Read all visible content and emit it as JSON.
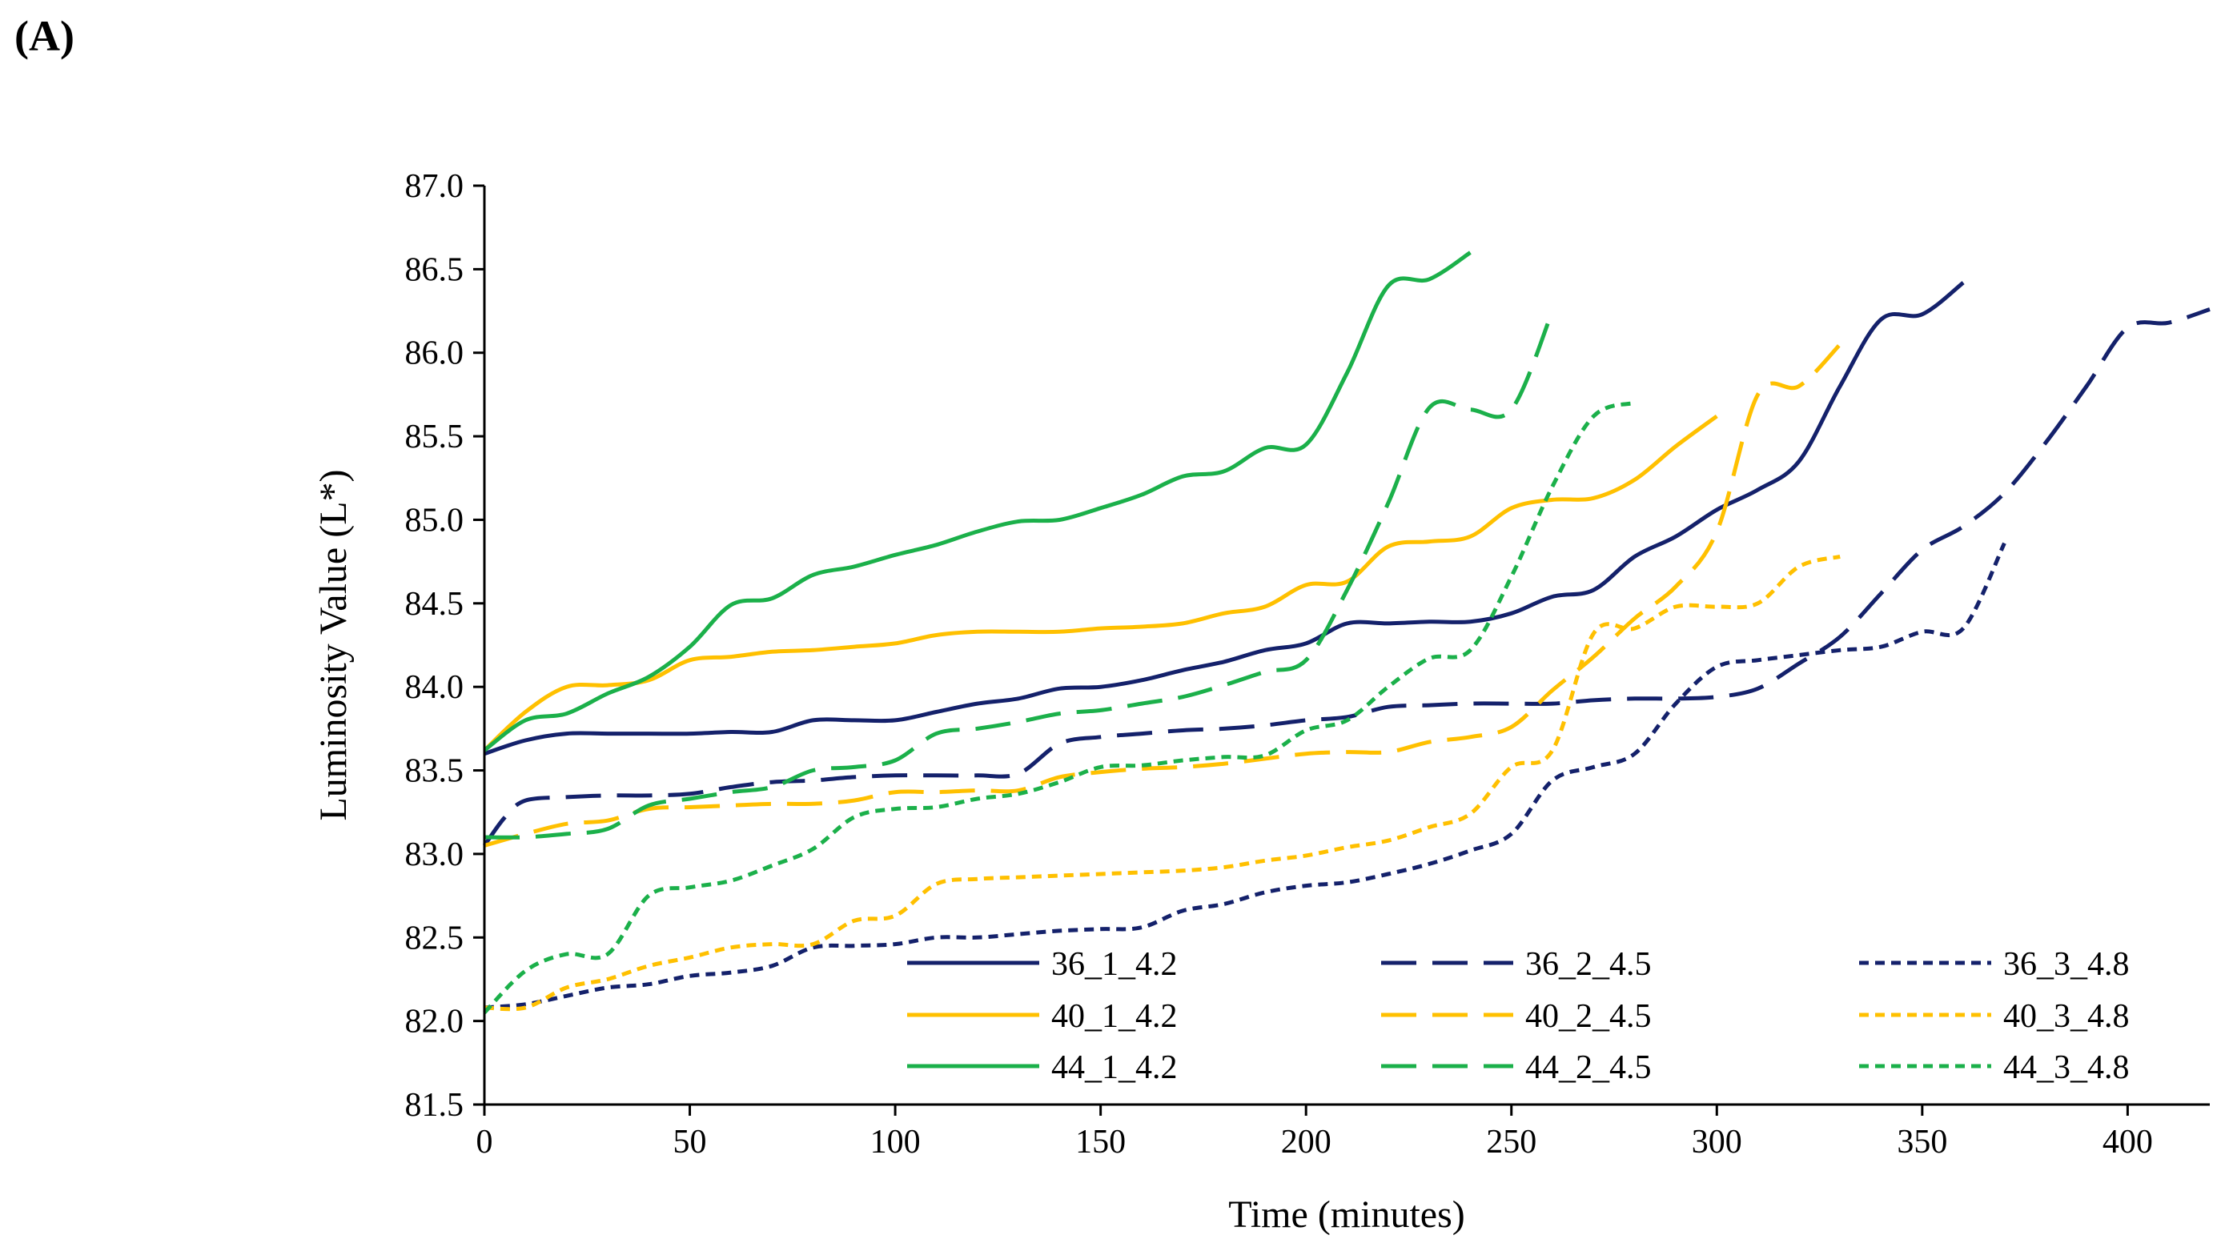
{
  "panel_label": "(A)",
  "chart_data": {
    "type": "line",
    "title": "",
    "xlabel": "Time (minutes)",
    "ylabel": "Luminosity Value (L*)",
    "xlim": [
      0,
      420
    ],
    "ylim": [
      81.5,
      87.0
    ],
    "xticks": [
      0,
      50,
      100,
      150,
      200,
      250,
      300,
      350,
      400
    ],
    "yticks": [
      81.5,
      82.0,
      82.5,
      83.0,
      83.5,
      84.0,
      84.5,
      85.0,
      85.5,
      86.0,
      86.5,
      87.0
    ],
    "grid": false,
    "legend_position": "inside-bottom",
    "series": [
      {
        "name": "36_1_4.2",
        "color": "#14216b",
        "dash": "solid",
        "x": [
          0,
          10,
          20,
          30,
          40,
          50,
          60,
          70,
          80,
          90,
          100,
          110,
          120,
          130,
          140,
          150,
          160,
          170,
          180,
          190,
          200,
          210,
          220,
          230,
          240,
          250,
          260,
          270,
          280,
          290,
          300,
          310,
          320,
          330,
          340,
          350,
          360
        ],
        "y": [
          83.6,
          83.68,
          83.72,
          83.72,
          83.72,
          83.72,
          83.73,
          83.73,
          83.8,
          83.8,
          83.8,
          83.85,
          83.9,
          83.93,
          83.99,
          84.0,
          84.04,
          84.1,
          84.15,
          84.22,
          84.26,
          84.38,
          84.38,
          84.39,
          84.39,
          84.44,
          84.54,
          84.58,
          84.78,
          84.9,
          85.06,
          85.18,
          85.35,
          85.8,
          86.2,
          86.23,
          86.42
        ]
      },
      {
        "name": "36_2_4.5",
        "color": "#14216b",
        "dash": "long",
        "x": [
          0,
          5,
          10,
          20,
          30,
          40,
          50,
          60,
          70,
          80,
          90,
          100,
          110,
          120,
          130,
          140,
          150,
          160,
          170,
          180,
          190,
          200,
          210,
          220,
          230,
          240,
          250,
          260,
          270,
          280,
          290,
          300,
          310,
          320,
          330,
          340,
          350,
          360,
          370,
          380,
          390,
          400,
          410,
          420
        ],
        "y": [
          83.05,
          83.22,
          83.32,
          83.34,
          83.35,
          83.35,
          83.36,
          83.4,
          83.43,
          83.44,
          83.46,
          83.47,
          83.47,
          83.47,
          83.48,
          83.66,
          83.7,
          83.72,
          83.74,
          83.75,
          83.77,
          83.8,
          83.82,
          83.88,
          83.89,
          83.9,
          83.9,
          83.9,
          83.92,
          83.93,
          83.93,
          83.94,
          83.99,
          84.14,
          84.3,
          84.56,
          84.82,
          84.96,
          85.16,
          85.46,
          85.8,
          86.15,
          86.18,
          86.26
        ]
      },
      {
        "name": "36_3_4.8",
        "color": "#14216b",
        "dash": "short",
        "x": [
          0,
          10,
          20,
          30,
          40,
          50,
          60,
          70,
          80,
          90,
          100,
          110,
          120,
          130,
          140,
          150,
          160,
          170,
          180,
          190,
          200,
          210,
          220,
          230,
          240,
          250,
          260,
          270,
          280,
          290,
          300,
          310,
          320,
          330,
          340,
          350,
          360,
          370
        ],
        "y": [
          82.08,
          82.1,
          82.15,
          82.2,
          82.22,
          82.27,
          82.29,
          82.33,
          82.44,
          82.45,
          82.46,
          82.5,
          82.5,
          82.52,
          82.54,
          82.55,
          82.56,
          82.66,
          82.7,
          82.77,
          82.81,
          82.83,
          82.88,
          82.94,
          83.02,
          83.12,
          83.44,
          83.52,
          83.6,
          83.9,
          84.12,
          84.16,
          84.19,
          84.22,
          84.24,
          84.33,
          84.35,
          84.86
        ]
      },
      {
        "name": "40_1_4.2",
        "color": "#ffc000",
        "dash": "solid",
        "x": [
          0,
          10,
          20,
          30,
          40,
          50,
          60,
          70,
          80,
          90,
          100,
          110,
          120,
          130,
          140,
          150,
          160,
          170,
          180,
          190,
          200,
          210,
          220,
          230,
          240,
          250,
          260,
          270,
          280,
          290,
          300
        ],
        "y": [
          83.62,
          83.85,
          84.0,
          84.01,
          84.04,
          84.16,
          84.18,
          84.21,
          84.22,
          84.24,
          84.26,
          84.31,
          84.33,
          84.33,
          84.33,
          84.35,
          84.36,
          84.38,
          84.44,
          84.48,
          84.61,
          84.63,
          84.84,
          84.87,
          84.9,
          85.07,
          85.12,
          85.13,
          85.24,
          85.44,
          85.62
        ]
      },
      {
        "name": "40_2_4.5",
        "color": "#ffc000",
        "dash": "long",
        "x": [
          0,
          10,
          20,
          30,
          40,
          50,
          60,
          70,
          80,
          90,
          100,
          110,
          120,
          130,
          140,
          150,
          160,
          170,
          180,
          190,
          200,
          210,
          220,
          230,
          240,
          250,
          260,
          270,
          280,
          290,
          300,
          310,
          320,
          330
        ],
        "y": [
          83.05,
          83.12,
          83.18,
          83.2,
          83.27,
          83.28,
          83.29,
          83.3,
          83.3,
          83.32,
          83.37,
          83.37,
          83.38,
          83.38,
          83.46,
          83.49,
          83.51,
          83.52,
          83.54,
          83.57,
          83.6,
          83.61,
          83.61,
          83.67,
          83.7,
          83.76,
          83.98,
          84.18,
          84.41,
          84.6,
          84.93,
          85.75,
          85.8,
          86.05
        ]
      },
      {
        "name": "40_3_4.8",
        "color": "#ffc000",
        "dash": "short",
        "x": [
          0,
          10,
          20,
          30,
          40,
          50,
          60,
          70,
          80,
          90,
          100,
          110,
          120,
          130,
          140,
          150,
          160,
          170,
          180,
          190,
          200,
          210,
          220,
          230,
          240,
          250,
          260,
          270,
          280,
          290,
          300,
          310,
          320,
          330
        ],
        "y": [
          82.08,
          82.08,
          82.2,
          82.25,
          82.33,
          82.38,
          82.44,
          82.46,
          82.46,
          82.6,
          82.63,
          82.82,
          82.85,
          82.86,
          82.87,
          82.88,
          82.89,
          82.9,
          82.92,
          82.96,
          82.99,
          83.04,
          83.08,
          83.16,
          83.24,
          83.52,
          83.62,
          84.32,
          84.35,
          84.48,
          84.48,
          84.5,
          84.72,
          84.78
        ]
      },
      {
        "name": "44_1_4.2",
        "color": "#1bb04a",
        "dash": "solid",
        "x": [
          0,
          10,
          20,
          30,
          40,
          50,
          60,
          70,
          80,
          90,
          100,
          110,
          120,
          130,
          140,
          150,
          160,
          170,
          180,
          190,
          200,
          210,
          220,
          230,
          240
        ],
        "y": [
          83.62,
          83.8,
          83.84,
          83.96,
          84.06,
          84.24,
          84.49,
          84.53,
          84.67,
          84.72,
          84.79,
          84.85,
          84.93,
          84.99,
          85.0,
          85.07,
          85.15,
          85.26,
          85.29,
          85.43,
          85.45,
          85.88,
          86.4,
          86.44,
          86.6
        ]
      },
      {
        "name": "44_2_4.5",
        "color": "#1bb04a",
        "dash": "long",
        "x": [
          0,
          10,
          20,
          30,
          40,
          50,
          60,
          70,
          80,
          90,
          100,
          110,
          120,
          130,
          140,
          150,
          160,
          170,
          180,
          190,
          200,
          210,
          220,
          230,
          240,
          250,
          260
        ],
        "y": [
          83.1,
          83.1,
          83.12,
          83.15,
          83.29,
          83.33,
          83.37,
          83.4,
          83.5,
          83.52,
          83.56,
          83.72,
          83.75,
          83.79,
          83.84,
          83.86,
          83.9,
          83.94,
          84.01,
          84.09,
          84.16,
          84.58,
          85.1,
          85.67,
          85.66,
          85.66,
          86.25
        ]
      },
      {
        "name": "44_3_4.8",
        "color": "#1bb04a",
        "dash": "short",
        "x": [
          0,
          10,
          20,
          30,
          40,
          50,
          60,
          70,
          80,
          90,
          100,
          110,
          120,
          130,
          140,
          150,
          160,
          170,
          180,
          190,
          200,
          210,
          220,
          230,
          240,
          250,
          260,
          270,
          280
        ],
        "y": [
          82.05,
          82.3,
          82.4,
          82.4,
          82.75,
          82.8,
          82.84,
          82.93,
          83.03,
          83.22,
          83.27,
          83.28,
          83.33,
          83.36,
          83.43,
          83.52,
          83.53,
          83.56,
          83.58,
          83.59,
          83.74,
          83.8,
          84.0,
          84.17,
          84.22,
          84.66,
          85.2,
          85.62,
          85.7
        ]
      }
    ]
  }
}
